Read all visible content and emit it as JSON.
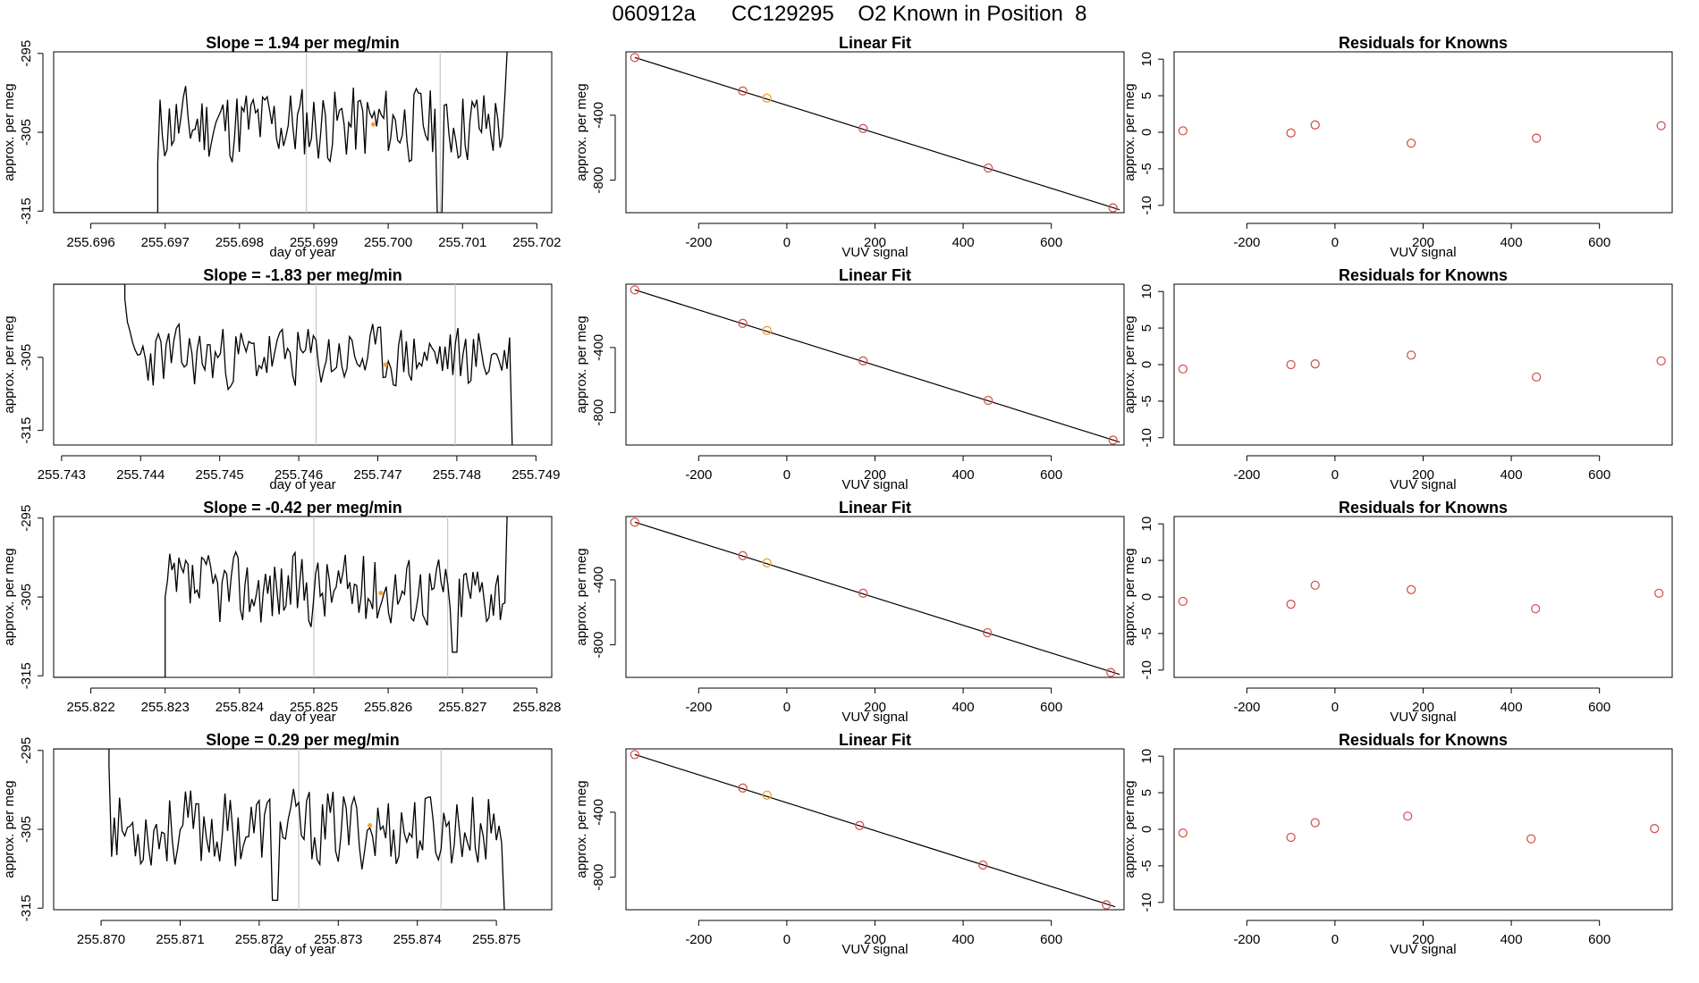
{
  "main_title": "060912a      CC129295    O2 Known in Position  8",
  "chart_data": [
    {
      "type": "line",
      "row": 0,
      "col": 0,
      "title": "Slope =  1.94  per meg/min",
      "xlabel": "day of year",
      "ylabel": "approx. per meg",
      "xlim": [
        255.6955,
        255.7022
      ],
      "ylim": [
        -315.2,
        -294.8
      ],
      "xticks": [
        "255.696",
        "255.697",
        "255.698",
        "255.699",
        "255.700",
        "255.701",
        "255.702"
      ],
      "yticks": [
        "-295",
        "-305",
        "-315"
      ],
      "vlines": [
        255.6989,
        255.7007
      ],
      "marker": {
        "x": 255.6998,
        "y": -304.0
      },
      "start": 255.6969,
      "end": 255.7016,
      "seed": 11,
      "series": {
        "start_y": -315.2,
        "first": -309.0,
        "last": -294.8,
        "mean": -304.0,
        "amp": 3.0,
        "dip": {
          "x": 255.7007,
          "y": -315.2
        }
      }
    },
    {
      "type": "scatter",
      "row": 0,
      "col": 1,
      "title": "Linear Fit",
      "xlabel": "VUV signal",
      "ylabel": "approx. per meg",
      "xlim": [
        -365,
        765
      ],
      "ylim": [
        -1000,
        -10
      ],
      "xticks": [
        "-200",
        "0",
        "200",
        "400",
        "600"
      ],
      "yticks": [
        "-400",
        "-800"
      ],
      "points": [
        [
          -345,
          -45
        ],
        [
          -100,
          -251
        ],
        [
          -45,
          -295
        ],
        [
          173,
          -482
        ],
        [
          457,
          -725
        ],
        [
          740,
          -970
        ]
      ],
      "orange_index": 2,
      "fit": [
        [
          -345,
          -45
        ],
        [
          755,
          -982
        ]
      ]
    },
    {
      "type": "scatter",
      "row": 0,
      "col": 2,
      "title": "Residuals for Knowns",
      "xlabel": "VUV signal",
      "ylabel": "approx. per meg",
      "xlim": [
        -365,
        765
      ],
      "ylim": [
        -11,
        11
      ],
      "xticks": [
        "-200",
        "0",
        "200",
        "400",
        "600"
      ],
      "yticks": [
        "10",
        "5",
        "0",
        "-5",
        "-10"
      ],
      "points": [
        [
          -345,
          0.2
        ],
        [
          -100,
          -0.1
        ],
        [
          -45,
          1.0
        ],
        [
          173,
          -1.5
        ],
        [
          457,
          -0.8
        ],
        [
          740,
          0.9
        ]
      ]
    },
    {
      "type": "line",
      "row": 1,
      "col": 0,
      "title": "Slope =  -1.83  per meg/min",
      "xlabel": "day of year",
      "ylabel": "approx. per meg",
      "xlim": [
        255.7429,
        255.7492
      ],
      "ylim": [
        -317,
        -295
      ],
      "xticks": [
        "255.743",
        "255.744",
        "255.745",
        "255.746",
        "255.747",
        "255.748",
        "255.749"
      ],
      "yticks": [
        "-305",
        "-315"
      ],
      "vlines": [
        255.74622,
        255.74798
      ],
      "marker": {
        "x": 255.7471,
        "y": -306.0
      },
      "start": 255.7438,
      "end": 255.7487,
      "seed": 23,
      "series": {
        "start_y": -295,
        "first": -297.0,
        "last": -317,
        "mean": -305.0,
        "amp": 2.6,
        "dip": null
      }
    },
    {
      "type": "scatter",
      "row": 1,
      "col": 1,
      "title": "Linear Fit",
      "xlabel": "VUV signal",
      "ylabel": "approx. per meg",
      "xlim": [
        -365,
        765
      ],
      "ylim": [
        -1000,
        -10
      ],
      "xticks": [
        "-200",
        "0",
        "200",
        "400",
        "600"
      ],
      "yticks": [
        "-400",
        "-800"
      ],
      "points": [
        [
          -345,
          -45
        ],
        [
          -100,
          -251
        ],
        [
          -45,
          -295
        ],
        [
          173,
          -482
        ],
        [
          457,
          -725
        ],
        [
          740,
          -970
        ]
      ],
      "orange_index": 2,
      "fit": [
        [
          -345,
          -45
        ],
        [
          755,
          -982
        ]
      ]
    },
    {
      "type": "scatter",
      "row": 1,
      "col": 2,
      "title": "Residuals for Knowns",
      "xlabel": "VUV signal",
      "ylabel": "approx. per meg",
      "xlim": [
        -365,
        765
      ],
      "ylim": [
        -11,
        11
      ],
      "xticks": [
        "-200",
        "0",
        "200",
        "400",
        "600"
      ],
      "yticks": [
        "10",
        "5",
        "0",
        "-5",
        "-10"
      ],
      "points": [
        [
          -345,
          -0.6
        ],
        [
          -100,
          0.0
        ],
        [
          -45,
          0.1
        ],
        [
          173,
          1.3
        ],
        [
          457,
          -1.7
        ],
        [
          740,
          0.5
        ]
      ]
    },
    {
      "type": "line",
      "row": 2,
      "col": 0,
      "title": "Slope =  -0.42  per meg/min",
      "xlabel": "day of year",
      "ylabel": "approx. per meg",
      "xlim": [
        255.8215,
        255.8282
      ],
      "ylim": [
        -315.2,
        -294.8
      ],
      "xticks": [
        "255.822",
        "255.823",
        "255.824",
        "255.825",
        "255.826",
        "255.827",
        "255.828"
      ],
      "yticks": [
        "-295",
        "-305",
        "-315"
      ],
      "vlines": [
        255.825,
        255.8268
      ],
      "marker": {
        "x": 255.8259,
        "y": -304.5
      },
      "start": 255.823,
      "end": 255.8276,
      "seed": 37,
      "series": {
        "start_y": -315.2,
        "first": -305.0,
        "last": -294.8,
        "mean": -304.0,
        "amp": 2.8,
        "dip": {
          "x": 255.8269,
          "y": -312.0
        }
      }
    },
    {
      "type": "scatter",
      "row": 2,
      "col": 1,
      "title": "Linear Fit",
      "xlabel": "VUV signal",
      "ylabel": "approx. per meg",
      "xlim": [
        -365,
        765
      ],
      "ylim": [
        -1000,
        -10
      ],
      "xticks": [
        "-200",
        "0",
        "200",
        "400",
        "600"
      ],
      "yticks": [
        "-400",
        "-800"
      ],
      "points": [
        [
          -345,
          -45
        ],
        [
          -100,
          -251
        ],
        [
          -45,
          -295
        ],
        [
          173,
          -482
        ],
        [
          455,
          -725
        ],
        [
          735,
          -970
        ]
      ],
      "orange_index": 2,
      "fit": [
        [
          -345,
          -45
        ],
        [
          755,
          -982
        ]
      ]
    },
    {
      "type": "scatter",
      "row": 2,
      "col": 2,
      "title": "Residuals for Knowns",
      "xlabel": "VUV signal",
      "ylabel": "approx. per meg",
      "xlim": [
        -365,
        765
      ],
      "ylim": [
        -11,
        11
      ],
      "xticks": [
        "-200",
        "0",
        "200",
        "400",
        "600"
      ],
      "yticks": [
        "10",
        "5",
        "0",
        "-5",
        "-10"
      ],
      "points": [
        [
          -345,
          -0.6
        ],
        [
          -100,
          -1.0
        ],
        [
          -45,
          1.6
        ],
        [
          173,
          1.0
        ],
        [
          455,
          -1.6
        ],
        [
          735,
          0.5
        ]
      ]
    },
    {
      "type": "line",
      "row": 3,
      "col": 0,
      "title": "Slope =  0.29  per meg/min",
      "xlabel": "day of year",
      "ylabel": "approx. per meg",
      "xlim": [
        255.8694,
        255.8757
      ],
      "ylim": [
        -315.2,
        -294.8
      ],
      "xticks": [
        "255.870",
        "255.871",
        "255.872",
        "255.873",
        "255.874",
        "255.875"
      ],
      "yticks": [
        "-295",
        "-305",
        "-315"
      ],
      "vlines": [
        255.8725,
        255.8743
      ],
      "marker": {
        "x": 255.8734,
        "y": -304.5
      },
      "start": 255.8701,
      "end": 255.8751,
      "seed": 53,
      "series": {
        "start_y": -294.8,
        "first": -297.0,
        "last": -315.2,
        "mean": -305.0,
        "amp": 3.0,
        "dip": {
          "x": 255.8722,
          "y": -314.0
        }
      }
    },
    {
      "type": "scatter",
      "row": 3,
      "col": 1,
      "title": "Linear Fit",
      "xlabel": "VUV signal",
      "ylabel": "approx. per meg",
      "xlim": [
        -365,
        765
      ],
      "ylim": [
        -1000,
        -10
      ],
      "xticks": [
        "-200",
        "0",
        "200",
        "400",
        "600"
      ],
      "yticks": [
        "-400",
        "-800"
      ],
      "points": [
        [
          -345,
          -45
        ],
        [
          -100,
          -251
        ],
        [
          -45,
          -295
        ],
        [
          165,
          -482
        ],
        [
          445,
          -725
        ],
        [
          725,
          -970
        ]
      ],
      "orange_index": 2,
      "fit": [
        [
          -345,
          -45
        ],
        [
          745,
          -982
        ]
      ]
    },
    {
      "type": "scatter",
      "row": 3,
      "col": 2,
      "title": "Residuals for Knowns",
      "xlabel": "VUV signal",
      "ylabel": "approx. per meg",
      "xlim": [
        -365,
        765
      ],
      "ylim": [
        -11,
        11
      ],
      "xticks": [
        "-200",
        "0",
        "200",
        "400",
        "600"
      ],
      "yticks": [
        "10",
        "5",
        "0",
        "-5",
        "-10"
      ],
      "points": [
        [
          -345,
          -0.5
        ],
        [
          -100,
          -1.1
        ],
        [
          -45,
          0.9
        ],
        [
          165,
          1.8
        ],
        [
          445,
          -1.3
        ],
        [
          725,
          0.1
        ]
      ]
    }
  ],
  "colors": {
    "line": "#000000",
    "point": "#d9534f",
    "orange": "#f0a030",
    "vline": "#c8c8c8",
    "axis": "#000000"
  }
}
